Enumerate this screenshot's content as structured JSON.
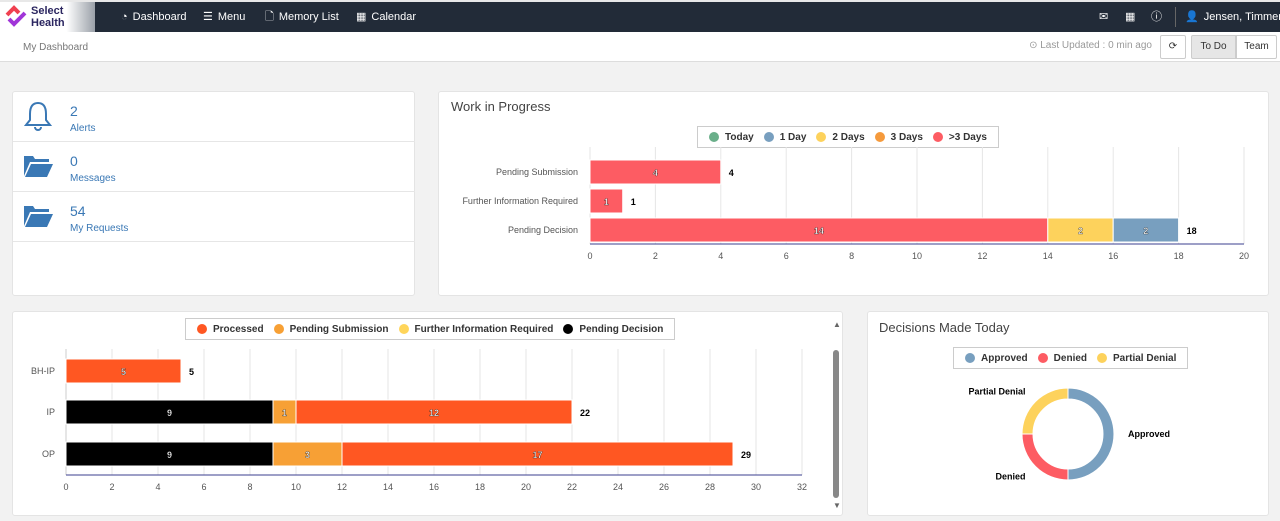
{
  "nav": {
    "brand": "Select Health",
    "items": [
      {
        "label": "Dashboard",
        "icon": "dashboard-icon"
      },
      {
        "label": "Menu",
        "icon": "menu-icon"
      },
      {
        "label": "Memory List",
        "icon": "file-icon"
      },
      {
        "label": "Calendar",
        "icon": "calendar-icon"
      }
    ],
    "user": "Jensen, Timmerie"
  },
  "subheader": {
    "breadcrumb": "My Dashboard",
    "last_updated": "Last Updated : 0 min ago",
    "todo_label": "To Do",
    "team_label": "Team",
    "active_toggle": "To Do"
  },
  "alerts": [
    {
      "count": "2",
      "label": "Alerts",
      "icon": "bell-icon"
    },
    {
      "count": "0",
      "label": "Messages",
      "icon": "folder-icon"
    },
    {
      "count": "54",
      "label": "My Requests",
      "icon": "folder-icon"
    }
  ],
  "wip": {
    "title": "Work in Progress"
  },
  "decisions": {
    "title": "Decisions Made Today"
  },
  "colors": {
    "nav_bg": "#222b38",
    "link": "#3a78b5"
  },
  "chart_data": [
    {
      "type": "bar",
      "orientation": "horizontal",
      "stacked": true,
      "title": "Work in Progress",
      "categories": [
        "Pending Submission",
        "Further Information Required",
        "Pending Decision"
      ],
      "series": [
        {
          "name": "Today",
          "color": "#6aaf8a",
          "values": [
            0,
            0,
            0
          ]
        },
        {
          "name": "1 Day",
          "color": "#789fbf",
          "values": [
            0,
            0,
            2
          ]
        },
        {
          "name": "2 Days",
          "color": "#fdd25c",
          "values": [
            0,
            0,
            2
          ]
        },
        {
          "name": "3 Days",
          "color": "#f59a3c",
          "values": [
            0,
            0,
            0
          ]
        },
        {
          "name": ">3 Days",
          "color": "#fd5c63",
          "values": [
            4,
            1,
            14
          ]
        }
      ],
      "series_order": [
        ">3 Days",
        "2 Days",
        "1 Day",
        "3 Days",
        "Today"
      ],
      "totals": [
        4,
        1,
        18
      ],
      "xlim": [
        0,
        20
      ],
      "xticks": [
        0,
        2,
        4,
        6,
        8,
        10,
        12,
        14,
        16,
        18,
        20
      ],
      "grid": true,
      "legend": "top"
    },
    {
      "type": "bar",
      "orientation": "horizontal",
      "stacked": true,
      "categories": [
        "BH-IP",
        "IP",
        "OP"
      ],
      "series": [
        {
          "name": "Processed",
          "color": "#ff5722",
          "values": [
            5,
            12,
            17
          ]
        },
        {
          "name": "Pending Submission",
          "color": "#f7a035",
          "values": [
            0,
            1,
            3
          ]
        },
        {
          "name": "Further Information Required",
          "color": "#ffd55a",
          "values": [
            0,
            0,
            0
          ]
        },
        {
          "name": "Pending Decision",
          "color": "#000000",
          "values": [
            0,
            9,
            9
          ]
        }
      ],
      "series_order": [
        "Pending Decision",
        "Pending Submission",
        "Further Information Required",
        "Processed"
      ],
      "totals": [
        5,
        22,
        29
      ],
      "xlim": [
        0,
        32
      ],
      "xticks": [
        0,
        2,
        4,
        6,
        8,
        10,
        12,
        14,
        16,
        18,
        20,
        22,
        24,
        26,
        28,
        30,
        32
      ],
      "grid": true,
      "legend": "top"
    },
    {
      "type": "pie",
      "donut": true,
      "title": "Decisions Made Today",
      "slices": [
        {
          "name": "Approved",
          "value": 50,
          "color": "#789fbf"
        },
        {
          "name": "Denied",
          "value": 25,
          "color": "#fd5c63"
        },
        {
          "name": "Partial Denial",
          "value": 25,
          "color": "#fdd25c"
        }
      ],
      "legend": "top"
    }
  ]
}
